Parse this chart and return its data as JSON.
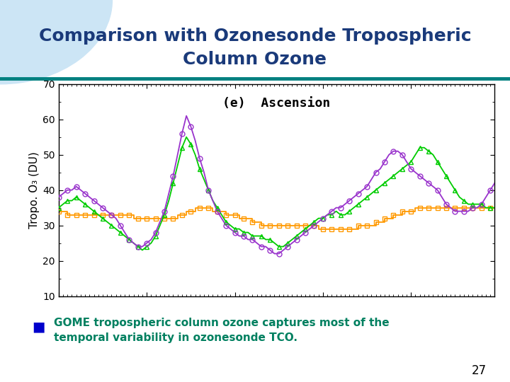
{
  "title_line1": "Comparison with Ozonesonde Tropospheric",
  "title_line2": "Column Ozone",
  "subtitle": "(e)  Ascension",
  "ylabel": "Tropo. O₃ (DU)",
  "ylim": [
    10,
    70
  ],
  "yticks": [
    10,
    20,
    30,
    40,
    50,
    60,
    70
  ],
  "title_color": "#1a3a7a",
  "title_fontsize": 18,
  "teal_line_color": "#008080",
  "bullet_color": "#0000cc",
  "bullet_text_color": "#008060",
  "bullet_text_fontsize": 11,
  "page_number": "27",
  "green_color": "#00cc00",
  "purple_color": "#9933cc",
  "orange_color": "#ff9900",
  "green_data": [
    35,
    36,
    37,
    37,
    38,
    37,
    36,
    35,
    34,
    33,
    32,
    31,
    30,
    29,
    28,
    27,
    26,
    25,
    24,
    23,
    24,
    25,
    27,
    30,
    33,
    37,
    42,
    47,
    52,
    55,
    53,
    50,
    46,
    43,
    40,
    37,
    35,
    33,
    31,
    30,
    29,
    29,
    28,
    28,
    27,
    27,
    27,
    26,
    26,
    25,
    24,
    24,
    25,
    26,
    27,
    28,
    29,
    30,
    31,
    32,
    32,
    33,
    33,
    34,
    33,
    33,
    34,
    35,
    36,
    37,
    38,
    39,
    40,
    41,
    42,
    43,
    44,
    45,
    46,
    47,
    48,
    50,
    52,
    52,
    51,
    50,
    48,
    46,
    44,
    42,
    40,
    38,
    37,
    36,
    36,
    36,
    36,
    35,
    35,
    35
  ],
  "purple_data": [
    38,
    39,
    40,
    40,
    41,
    40,
    39,
    38,
    37,
    36,
    35,
    34,
    33,
    32,
    30,
    28,
    26,
    25,
    24,
    24,
    25,
    26,
    28,
    31,
    34,
    39,
    44,
    50,
    56,
    61,
    58,
    54,
    49,
    45,
    40,
    37,
    34,
    32,
    30,
    29,
    28,
    27,
    27,
    26,
    26,
    25,
    24,
    24,
    23,
    22,
    22,
    23,
    24,
    25,
    26,
    27,
    28,
    29,
    30,
    31,
    32,
    33,
    34,
    35,
    35,
    36,
    37,
    38,
    39,
    40,
    41,
    43,
    45,
    46,
    48,
    50,
    51,
    51,
    50,
    48,
    46,
    45,
    44,
    43,
    42,
    41,
    40,
    38,
    36,
    35,
    34,
    34,
    34,
    34,
    35,
    35,
    36,
    38,
    40,
    42
  ],
  "orange_data": [
    34,
    34,
    33,
    33,
    33,
    33,
    33,
    33,
    33,
    33,
    33,
    33,
    33,
    33,
    33,
    33,
    33,
    32,
    32,
    32,
    32,
    32,
    32,
    32,
    32,
    32,
    32,
    33,
    33,
    34,
    34,
    35,
    35,
    35,
    35,
    34,
    34,
    34,
    33,
    33,
    33,
    32,
    32,
    32,
    31,
    31,
    30,
    30,
    30,
    30,
    30,
    30,
    30,
    30,
    30,
    30,
    30,
    30,
    30,
    29,
    29,
    29,
    29,
    29,
    29,
    29,
    29,
    29,
    30,
    30,
    30,
    30,
    31,
    31,
    32,
    32,
    33,
    33,
    34,
    34,
    34,
    35,
    35,
    35,
    35,
    35,
    35,
    35,
    35,
    35,
    35,
    35,
    35,
    35,
    35,
    35,
    35,
    35,
    35,
    35
  ]
}
